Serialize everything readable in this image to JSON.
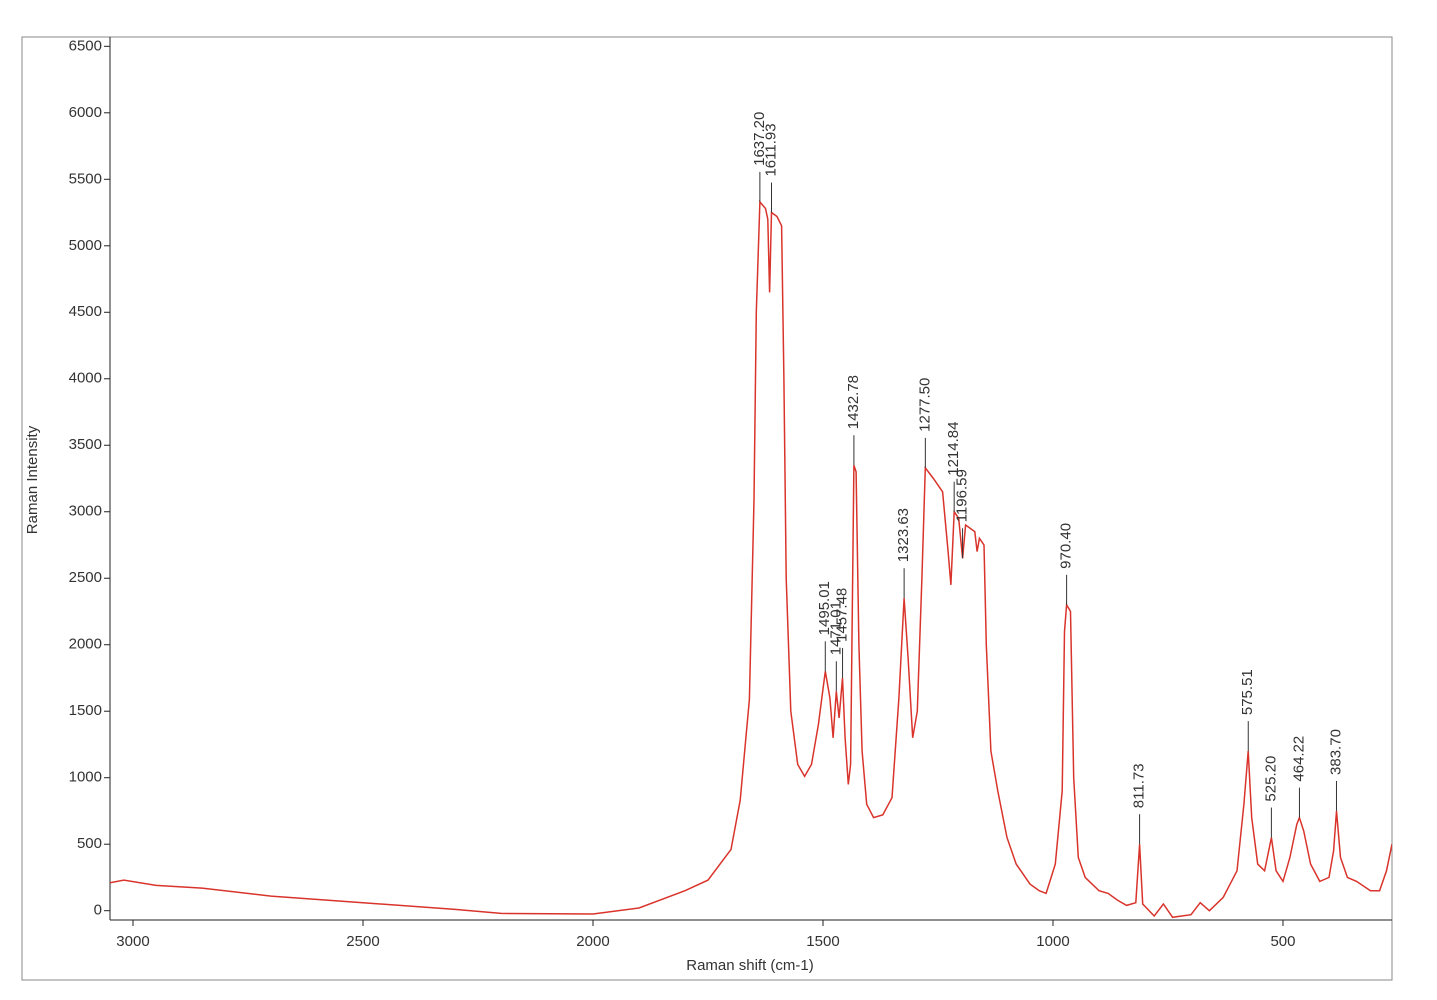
{
  "chart_data": {
    "type": "line",
    "xlabel": "Raman shift (cm-1)",
    "ylabel": "Raman Intensity",
    "xlim": [
      3050,
      263
    ],
    "ylim": [
      -70,
      6570
    ],
    "xticks": [
      3000,
      2500,
      2000,
      1500,
      1000,
      500
    ],
    "yticks": [
      0,
      500,
      1000,
      1500,
      2000,
      2500,
      3000,
      3500,
      4000,
      4500,
      5000,
      5500,
      6000,
      6500
    ],
    "color": "#d9342b",
    "x": [
      3050,
      3020,
      2950,
      2850,
      2700,
      2500,
      2300,
      2200,
      2000,
      1900,
      1800,
      1750,
      1700,
      1680,
      1660,
      1650,
      1645,
      1637.2,
      1625,
      1620,
      1616,
      1611.93,
      1600,
      1590,
      1585,
      1580,
      1570,
      1555,
      1540,
      1525,
      1510,
      1495.01,
      1485,
      1478,
      1471.01,
      1465,
      1457.48,
      1452,
      1445,
      1440,
      1432.78,
      1428,
      1422,
      1415,
      1405,
      1390,
      1370,
      1350,
      1335,
      1323.63,
      1315,
      1305,
      1295,
      1285,
      1277.5,
      1260,
      1240,
      1228,
      1222,
      1214.84,
      1205,
      1196.59,
      1190,
      1170,
      1165,
      1160,
      1150,
      1145,
      1135,
      1120,
      1100,
      1080,
      1050,
      1030,
      1015,
      995,
      980,
      975,
      970.4,
      962,
      955,
      945,
      930,
      900,
      880,
      860,
      840,
      820,
      811.73,
      805,
      780,
      760,
      740,
      700,
      680,
      660,
      630,
      600,
      585,
      575.51,
      568,
      555,
      540,
      525.2,
      515,
      500,
      485,
      470,
      464.22,
      455,
      440,
      420,
      400,
      390,
      383.7,
      375,
      360,
      340,
      310,
      290,
      275,
      263
    ],
    "values": [
      210,
      230,
      190,
      170,
      110,
      60,
      10,
      -20,
      -25,
      20,
      150,
      230,
      460,
      830,
      1590,
      3090,
      4500,
      5330,
      5280,
      5200,
      4650,
      5250,
      5220,
      5150,
      4000,
      2500,
      1500,
      1100,
      1010,
      1100,
      1400,
      1800,
      1600,
      1300,
      1650,
      1450,
      1750,
      1300,
      950,
      1100,
      3350,
      3300,
      2000,
      1200,
      800,
      700,
      720,
      850,
      1600,
      2350,
      1900,
      1300,
      1500,
      2500,
      3330,
      3250,
      3150,
      2700,
      2450,
      3000,
      2950,
      2650,
      2900,
      2850,
      2700,
      2800,
      2750,
      2000,
      1200,
      900,
      550,
      350,
      200,
      150,
      130,
      350,
      900,
      2100,
      2300,
      2250,
      1000,
      400,
      250,
      150,
      130,
      80,
      40,
      60,
      500,
      50,
      -40,
      50,
      -50,
      -30,
      60,
      0,
      100,
      300,
      800,
      1200,
      700,
      350,
      300,
      550,
      300,
      220,
      400,
      650,
      700,
      600,
      350,
      220,
      250,
      450,
      750,
      400,
      250,
      220,
      150,
      150,
      300,
      500
    ],
    "annotations": [
      {
        "text": "1637.20",
        "x": 1637.2,
        "y": 5330
      },
      {
        "text": "1611.93",
        "x": 1611.93,
        "y": 5250
      },
      {
        "text": "1495.01",
        "x": 1495.01,
        "y": 1800
      },
      {
        "text": "1471.01",
        "x": 1471.01,
        "y": 1650
      },
      {
        "text": "1457.48",
        "x": 1457.48,
        "y": 1750
      },
      {
        "text": "1432.78",
        "x": 1432.78,
        "y": 3350
      },
      {
        "text": "1323.63",
        "x": 1323.63,
        "y": 2350
      },
      {
        "text": "1277.50",
        "x": 1277.5,
        "y": 3330
      },
      {
        "text": "1214.84",
        "x": 1214.84,
        "y": 3000
      },
      {
        "text": "1196.59",
        "x": 1196.59,
        "y": 2650
      },
      {
        "text": "970.40",
        "x": 970.4,
        "y": 2300
      },
      {
        "text": "811.73",
        "x": 811.73,
        "y": 500
      },
      {
        "text": "575.51",
        "x": 575.51,
        "y": 1200
      },
      {
        "text": "525.20",
        "x": 525.2,
        "y": 550
      },
      {
        "text": "464.22",
        "x": 464.22,
        "y": 700
      },
      {
        "text": "383.70",
        "x": 383.7,
        "y": 750
      }
    ]
  }
}
